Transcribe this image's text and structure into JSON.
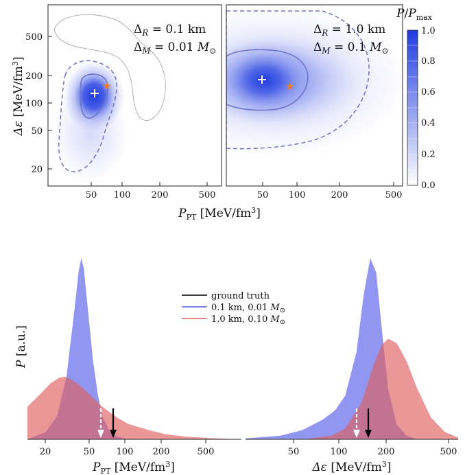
{
  "figure": {
    "chart_data": [
      {
        "type": "heatmap",
        "panel": "top-left",
        "annotation": {
          "line1": "Δ_R = 0.1 km",
          "line2": "Δ_M = 0.01 M_⊙"
        },
        "xlabel": "P_PT [MeV/fm³]",
        "ylabel": "Δε [MeV/fm³]",
        "xscale": "log",
        "yscale": "log",
        "xlim": [
          25,
          620
        ],
        "ylim": [
          14,
          900
        ],
        "xticks": [
          "50",
          "100",
          "200",
          "500"
        ],
        "yticks": [
          "20",
          "50",
          "100",
          "200",
          "500"
        ],
        "max_marker": {
          "x": 61,
          "y": 125
        },
        "truth_marker": {
          "x": 78,
          "y": 150
        },
        "colors": {
          "fill": "#1f3be0",
          "contour": "#6e72c9",
          "truth": "#f07b2c",
          "outer": "#a0a0a0"
        }
      },
      {
        "type": "heatmap",
        "panel": "top-right",
        "annotation": {
          "line1": "Δ_R = 1.0 km",
          "line2": "Δ_M = 0.1 M_⊙"
        },
        "xscale": "log",
        "yscale": "log",
        "xlim": [
          25,
          620
        ],
        "ylim": [
          14,
          900
        ],
        "xticks": [
          "50",
          "100",
          "200",
          "500"
        ],
        "max_marker": {
          "x": 46,
          "y": 178
        },
        "truth_marker": {
          "x": 78,
          "y": 150
        },
        "colorbar": {
          "label": "P/P_max",
          "ticks": [
            "0.0",
            "0.2",
            "0.4",
            "0.6",
            "0.8",
            "1.0"
          ],
          "range": [
            0,
            1
          ]
        }
      },
      {
        "type": "area",
        "panel": "bottom-left",
        "xlabel": "P_PT [MeV/fm³]",
        "ylabel": "P [a.u.]",
        "xscale": "log",
        "xlim": [
          14,
          900
        ],
        "xticks": [
          "20",
          "50",
          "100",
          "200",
          "500"
        ],
        "series": [
          {
            "name": "0.1 km, 0.01 M_⊙",
            "color": "#7b7fe8",
            "x": [
              14,
              20,
              25,
              30,
              35,
              38,
              40,
              42,
              45,
              50,
              55,
              60,
              70,
              80,
              100,
              150,
              900
            ],
            "y": [
              0.0,
              0.04,
              0.13,
              0.35,
              0.72,
              0.93,
              1.0,
              0.94,
              0.74,
              0.44,
              0.25,
              0.13,
              0.04,
              0.015,
              0.0,
              0.0,
              0.0
            ]
          },
          {
            "name": "1.0 km, 0.10 M_⊙",
            "color": "#e88080",
            "x": [
              14,
              18,
              22,
              26,
              29,
              33,
              40,
              50,
              60,
              80,
              100,
              150,
              200,
              300,
              500,
              900
            ],
            "y": [
              0.18,
              0.25,
              0.31,
              0.34,
              0.345,
              0.33,
              0.29,
              0.23,
              0.18,
              0.12,
              0.085,
              0.05,
              0.03,
              0.015,
              0.006,
              0.0
            ]
          }
        ],
        "arrows": {
          "truth_x": 78,
          "max_x": 61
        }
      },
      {
        "type": "area",
        "panel": "bottom-right",
        "xlabel": "Δε [MeV/fm³]",
        "xscale": "log",
        "xlim": [
          20,
          620
        ],
        "xticks": [
          "50",
          "100",
          "200",
          "500"
        ],
        "series": [
          {
            "name": "0.1 km, 0.01 M_⊙",
            "color": "#7b7fe8",
            "x": [
              20,
              35,
              50,
              70,
              85,
              100,
              120,
              135,
              150,
              165,
              180,
              200,
              230,
              270,
              320,
              620
            ],
            "y": [
              0.005,
              0.02,
              0.05,
              0.11,
              0.16,
              0.24,
              0.48,
              0.8,
              1.0,
              0.92,
              0.62,
              0.28,
              0.08,
              0.02,
              0.0,
              0.0
            ]
          },
          {
            "name": "1.0 km, 0.10 M_⊙",
            "color": "#e88080",
            "x": [
              20,
              50,
              80,
              100,
              130,
              160,
              180,
              200,
              230,
              270,
              320,
              400,
              500,
              620
            ],
            "y": [
              0.0,
              0.0,
              0.02,
              0.06,
              0.2,
              0.42,
              0.52,
              0.555,
              0.53,
              0.43,
              0.28,
              0.12,
              0.04,
              0.01
            ]
          }
        ],
        "arrows": {
          "truth_x": 150,
          "max_x": 125
        }
      }
    ],
    "legend": {
      "items": [
        {
          "label": "ground truth",
          "color": "#000000"
        },
        {
          "label": "0.1 km, 0.01 M_⊙",
          "color": "#4d55e6"
        },
        {
          "label": "1.0 km, 0.10 M_⊙",
          "color": "#e06060"
        }
      ]
    }
  }
}
